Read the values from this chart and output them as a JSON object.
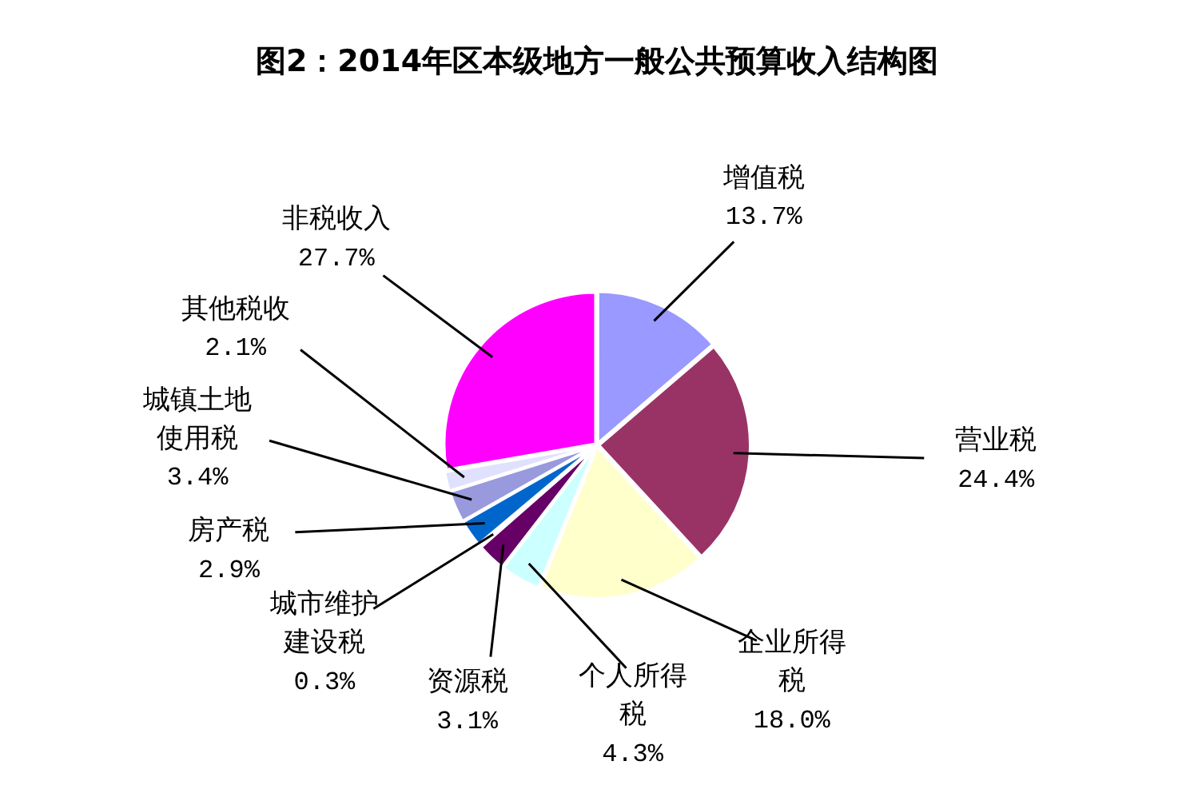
{
  "chart_data": {
    "type": "pie",
    "title": "图2：2014年区本级地方一般公共预算收入结构图",
    "categories": [
      "增值税",
      "营业税",
      "企业所得税",
      "个人所得税",
      "资源税",
      "城市维护建设税",
      "房产税",
      "城镇土地使用税",
      "其他税收",
      "非税收入"
    ],
    "values": [
      13.7,
      24.4,
      18.0,
      4.3,
      3.1,
      0.3,
      2.9,
      3.4,
      2.1,
      27.7
    ],
    "value_labels": [
      "13.7%",
      "24.4%",
      "18.0%",
      "4.3%",
      "3.1%",
      "0.3%",
      "2.9%",
      "3.4%",
      "2.1%",
      "27.7%"
    ],
    "colors": [
      "#9999ff",
      "#993366",
      "#ffffcc",
      "#ccffff",
      "#660066",
      "#ff8080",
      "#0066cc",
      "#9999dd",
      "#e0e0ff",
      "#ff00ff"
    ],
    "legend": false
  }
}
